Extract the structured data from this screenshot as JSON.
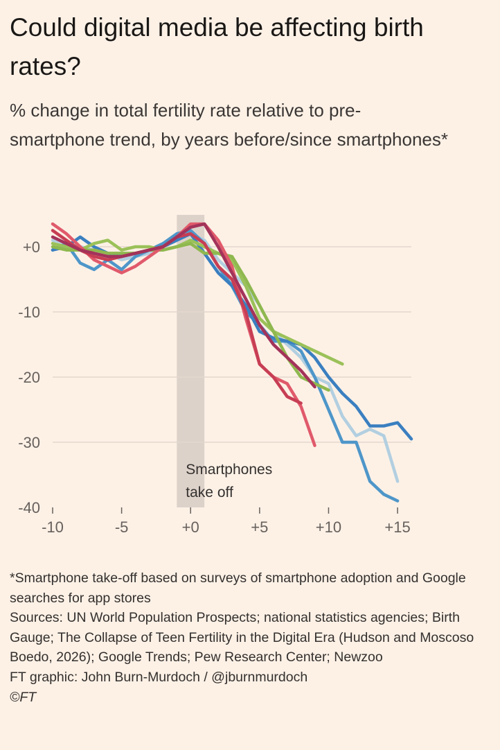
{
  "title": "Could digital media be affecting birth rates?",
  "subtitle": "% change in total fertility rate relative to pre-smartphone trend, by years before/since smartphones*",
  "chart_data": {
    "type": "line",
    "xlim": [
      -10,
      16
    ],
    "ylim": [
      -40,
      5
    ],
    "x_ticks": [
      -10,
      -5,
      0,
      5,
      10,
      15
    ],
    "x_tick_labels": [
      "-10",
      "-5",
      "+0",
      "+5",
      "+10",
      "+15"
    ],
    "y_ticks": [
      0,
      -10,
      -20,
      -30,
      -40
    ],
    "y_tick_labels": [
      "+0",
      "-10",
      "-20",
      "-30",
      "-40"
    ],
    "grid": "horizontal",
    "shaded_band": {
      "x_range": [
        -1,
        1
      ],
      "label_lines": [
        "Smartphones",
        "take off"
      ]
    },
    "series": [
      {
        "color": "#b2cfe0",
        "x": [
          -10,
          -9,
          -8,
          -7,
          -6,
          -5,
          -4,
          -3,
          -2,
          -1,
          0,
          1,
          2,
          3,
          4,
          5,
          6,
          7,
          8,
          9,
          10,
          11,
          12,
          13,
          14,
          15
        ],
        "y": [
          1,
          0.5,
          0,
          -0.5,
          -1,
          -2,
          -1.5,
          -1,
          0,
          1,
          2,
          1,
          -2,
          -4,
          -6,
          -9,
          -13,
          -15,
          -17,
          -20,
          -21,
          -26,
          -29,
          -28,
          -29,
          -36
        ]
      },
      {
        "color": "#4e96c9",
        "x": [
          -10,
          -9,
          -8,
          -7,
          -6,
          -5,
          -4,
          -3,
          -2,
          -1,
          0,
          1,
          2,
          3,
          4,
          5,
          6,
          7,
          8,
          9,
          10,
          11,
          12,
          13,
          14,
          15
        ],
        "y": [
          -0.5,
          0.5,
          -2.5,
          -3.5,
          -2,
          -3.5,
          -1.5,
          -0.5,
          0.5,
          2,
          2.5,
          0.5,
          -3,
          -6,
          -10,
          -12,
          -14.5,
          -14.5,
          -16,
          -20,
          -25,
          -30,
          -30,
          -36,
          -38,
          -39
        ]
      },
      {
        "color": "#3a7fc0",
        "x": [
          -10,
          -9,
          -8,
          -7,
          -6,
          -5,
          -4,
          -3,
          -2,
          -1,
          0,
          1,
          2,
          3,
          4,
          5,
          6,
          7,
          8,
          9,
          10,
          11,
          12,
          13,
          14,
          15,
          16
        ],
        "y": [
          -0.5,
          0,
          1.5,
          0,
          -1,
          -1.5,
          -1,
          -0.5,
          0,
          1,
          2,
          -1,
          -4,
          -6,
          -9,
          -13,
          -14,
          -14.5,
          -15,
          -17,
          -20,
          -22.5,
          -24.5,
          -27.5,
          -27.5,
          -27,
          -29.5
        ]
      },
      {
        "color": "#9bc159",
        "x": [
          -10,
          -9,
          -8,
          -7,
          -6,
          -5,
          -4,
          -3,
          -2,
          -1,
          0,
          1,
          2,
          3,
          4,
          5,
          6,
          7,
          8,
          9,
          10,
          11
        ],
        "y": [
          0.5,
          0,
          -0.5,
          0.5,
          1,
          -0.5,
          0,
          0,
          -0.5,
          0,
          1,
          0,
          -1,
          -2,
          -6,
          -11,
          -13,
          -14,
          -15,
          -16,
          -17,
          -18
        ]
      },
      {
        "color": "#8fb84f",
        "x": [
          -10,
          -9,
          -8,
          -7,
          -6,
          -5,
          -4,
          -3,
          -2,
          -1,
          0,
          1,
          2,
          3,
          4,
          5,
          6,
          7,
          8,
          9,
          10
        ],
        "y": [
          0,
          -0.5,
          -0.5,
          -0.5,
          -1,
          -1,
          -1,
          -0.5,
          -0.5,
          0,
          0.5,
          -1,
          -1,
          -1.5,
          -5,
          -9,
          -13,
          -17,
          -20,
          -21,
          -22
        ]
      },
      {
        "color": "#e05a6b",
        "x": [
          -10,
          -9,
          -8,
          -7,
          -6,
          -5,
          -4,
          -3,
          -2,
          -1,
          0,
          1,
          2,
          3,
          4,
          5,
          6,
          7,
          8,
          9
        ],
        "y": [
          3.5,
          2,
          0,
          -2,
          -3,
          -4,
          -3,
          -1.5,
          0,
          1.5,
          3.5,
          3.5,
          1,
          -3,
          -11,
          -18,
          -20,
          -21,
          -24.5,
          -30.5
        ]
      },
      {
        "color": "#c73e54",
        "x": [
          -10,
          -9,
          -8,
          -7,
          -6,
          -5,
          -4,
          -3,
          -2,
          -1,
          0,
          1,
          2,
          3,
          4,
          5,
          6,
          7,
          8
        ],
        "y": [
          2.5,
          1,
          -0.5,
          -1.5,
          -2,
          -1.5,
          -1,
          -0.5,
          0,
          1.5,
          2,
          0.5,
          -3,
          -5,
          -10,
          -18,
          -20,
          -23,
          -24
        ]
      },
      {
        "color": "#a3335a",
        "x": [
          -10,
          -9,
          -8,
          -7,
          -6,
          -5,
          -4,
          -3,
          -2,
          -1,
          0,
          1,
          2,
          3,
          4,
          5,
          6,
          7,
          8,
          9
        ],
        "y": [
          1.5,
          0.5,
          -0.5,
          -1,
          -1.5,
          -1.5,
          -1,
          -0.5,
          0,
          1.5,
          3,
          3.5,
          0,
          -4,
          -8,
          -12,
          -15,
          -17,
          -19,
          -21.5
        ]
      }
    ]
  },
  "footer": {
    "note": "*Smartphone take-off based on surveys of smartphone adoption and Google searches for app stores",
    "sources": "Sources: UN World Population Prospects; national statistics agencies; Birth Gauge; The Collapse of Teen Fertility in the Digital Era (Hudson and Moscoso Boedo, 2026); Google Trends; Pew Research Center; Newzoo",
    "credit": "FT graphic: John Burn-Murdoch / @jburnmurdoch",
    "copyright": "©FT"
  }
}
